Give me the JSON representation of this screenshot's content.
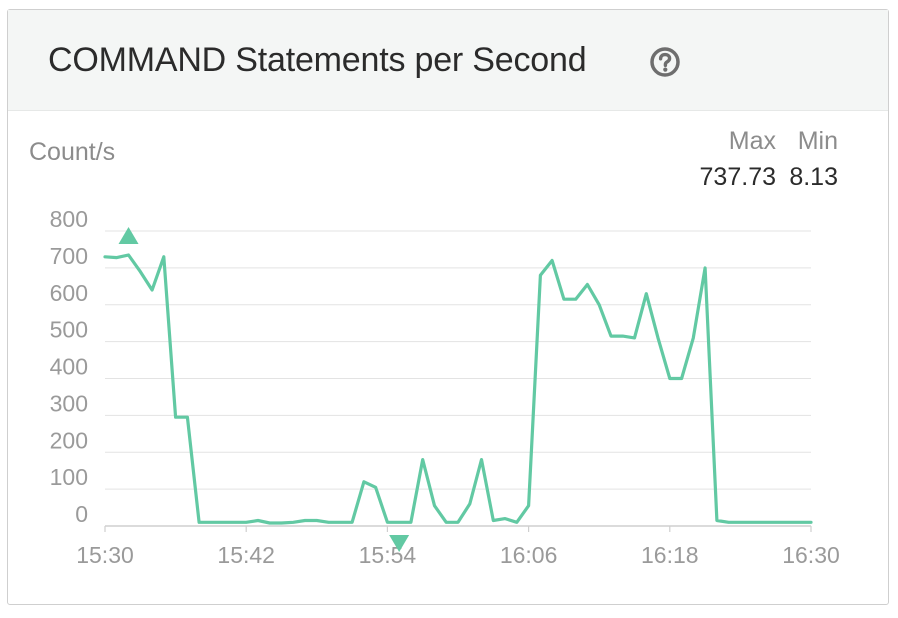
{
  "panel": {
    "title": "COMMAND Statements per Second",
    "help_icon": "question-circle-icon"
  },
  "unit": "Count/s",
  "stats": {
    "max_label": "Max",
    "max_value": "737.73",
    "min_label": "Min",
    "min_value": "8.13"
  },
  "colors": {
    "series": "#62c9a3",
    "grid": "#e3e3e3",
    "axis_text": "#9a9a9a"
  },
  "chart_data": {
    "type": "line",
    "title": "COMMAND Statements per Second",
    "ylabel": "Count/s",
    "ylim": [
      0,
      800
    ],
    "yticks": [
      0,
      100,
      200,
      300,
      400,
      500,
      600,
      700,
      800
    ],
    "xlim": [
      "15:30",
      "16:30"
    ],
    "xticks": [
      "15:30",
      "15:42",
      "15:54",
      "16:06",
      "16:18",
      "16:30"
    ],
    "grid": true,
    "series": [
      {
        "x": [
          "15:30",
          "15:31",
          "15:32",
          "15:33",
          "15:34",
          "15:35",
          "15:36",
          "15:37",
          "15:38",
          "15:39",
          "15:40",
          "15:41",
          "15:42",
          "15:43",
          "15:44",
          "15:45",
          "15:46",
          "15:47",
          "15:48",
          "15:49",
          "15:50",
          "15:51",
          "15:52",
          "15:53",
          "15:54",
          "15:55",
          "15:56",
          "15:57",
          "15:58",
          "15:59",
          "16:00",
          "16:01",
          "16:02",
          "16:03",
          "16:04",
          "16:05",
          "16:06",
          "16:07",
          "16:08",
          "16:09",
          "16:10",
          "16:11",
          "16:12",
          "16:13",
          "16:14",
          "16:15",
          "16:16",
          "16:17",
          "16:18",
          "16:19",
          "16:20",
          "16:21",
          "16:22",
          "16:23",
          "16:24",
          "16:25",
          "16:26",
          "16:27",
          "16:28",
          "16:29",
          "16:30"
        ],
        "y": [
          730,
          728,
          735,
          690,
          640,
          730,
          295,
          295,
          10,
          10,
          10,
          10,
          10,
          15,
          8,
          8,
          10,
          15,
          15,
          10,
          10,
          10,
          120,
          105,
          10,
          10,
          10,
          180,
          55,
          10,
          10,
          60,
          180,
          15,
          20,
          10,
          55,
          680,
          720,
          615,
          615,
          655,
          600,
          515,
          515,
          510,
          630,
          510,
          400,
          400,
          510,
          700,
          15,
          10,
          10,
          10,
          10,
          10,
          10,
          10,
          10
        ]
      }
    ],
    "annotations": [
      {
        "type": "max-marker",
        "x": "15:32",
        "y": 737.73
      },
      {
        "type": "min-marker",
        "x": "15:55",
        "y": 8.13
      }
    ]
  }
}
